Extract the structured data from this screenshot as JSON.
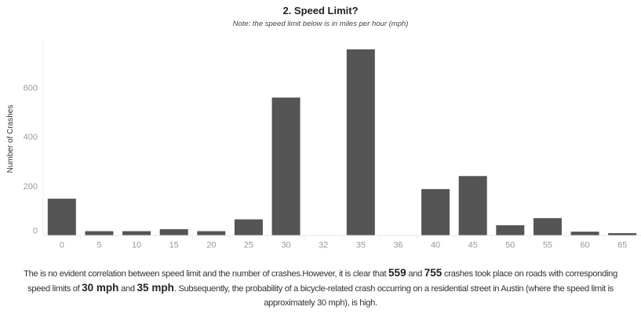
{
  "chart_data": {
    "type": "bar",
    "title": "2. Speed Limit?",
    "subtitle": "Note: the speed limit below is in miles per hour (mph)",
    "xlabel": "",
    "ylabel": "Number of Crashes",
    "categories": [
      "0",
      "5",
      "10",
      "15",
      "20",
      "25",
      "30",
      "32",
      "35",
      "36",
      "40",
      "45",
      "50",
      "55",
      "60",
      "65"
    ],
    "values": [
      148,
      16,
      16,
      24,
      16,
      64,
      559,
      0,
      755,
      0,
      187,
      240,
      40,
      69,
      14,
      8
    ],
    "ylim": [
      0,
      780
    ],
    "yticks": [
      0,
      200,
      400,
      600
    ],
    "grid": false,
    "bar_color": "#555555"
  },
  "caption": {
    "p1": "The is no evident correlation between speed limit and the number of crashes.However, it is clear that ",
    "b1": "559",
    "p2": " and ",
    "b2": "755",
    "p3": " crashes took place on roads with corresponding speed limits of ",
    "b3": "30 mph",
    "p4": " and ",
    "b4": "35 mph",
    "p5": ". Subsequently, the probability of a bicycle-related crash occurring on a residential street in Austin (where the speed limit is approximately 30 mph), is high."
  }
}
